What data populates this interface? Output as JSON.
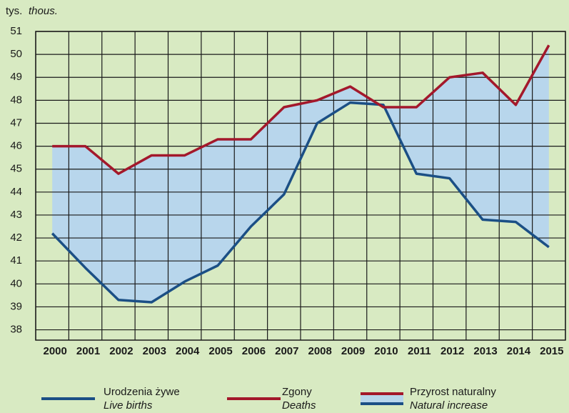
{
  "chart_data": {
    "type": "line",
    "y_unit_label": "tys.",
    "y_unit_label_en": "thous.",
    "categories": [
      "2000",
      "2001",
      "2002",
      "2003",
      "2004",
      "2005",
      "2006",
      "2007",
      "2008",
      "2009",
      "2010",
      "2011",
      "2012",
      "2013",
      "2014",
      "2015"
    ],
    "series": [
      {
        "name": "Urodzenia żywe",
        "name_en": "Live births",
        "color": "#1b4f85",
        "values": [
          42.2,
          40.7,
          39.3,
          39.2,
          40.1,
          40.8,
          42.5,
          43.9,
          47.0,
          47.9,
          47.8,
          44.8,
          44.6,
          42.8,
          42.7,
          41.6
        ]
      },
      {
        "name": "Zgony",
        "name_en": "Deaths",
        "color": "#a3182b",
        "values": [
          46.0,
          46.0,
          44.8,
          45.6,
          45.6,
          46.3,
          46.3,
          47.7,
          48.0,
          48.6,
          47.7,
          47.7,
          49.0,
          49.2,
          47.8,
          50.4
        ]
      }
    ],
    "area": {
      "name": "Przyrost naturalny",
      "name_en": "Natural increase",
      "color": "#b8d6ec"
    },
    "ylim": [
      37.55,
      51
    ],
    "yticks": [
      38,
      39,
      40,
      41,
      42,
      43,
      44,
      45,
      46,
      47,
      48,
      49,
      50,
      51
    ],
    "grid": true
  }
}
